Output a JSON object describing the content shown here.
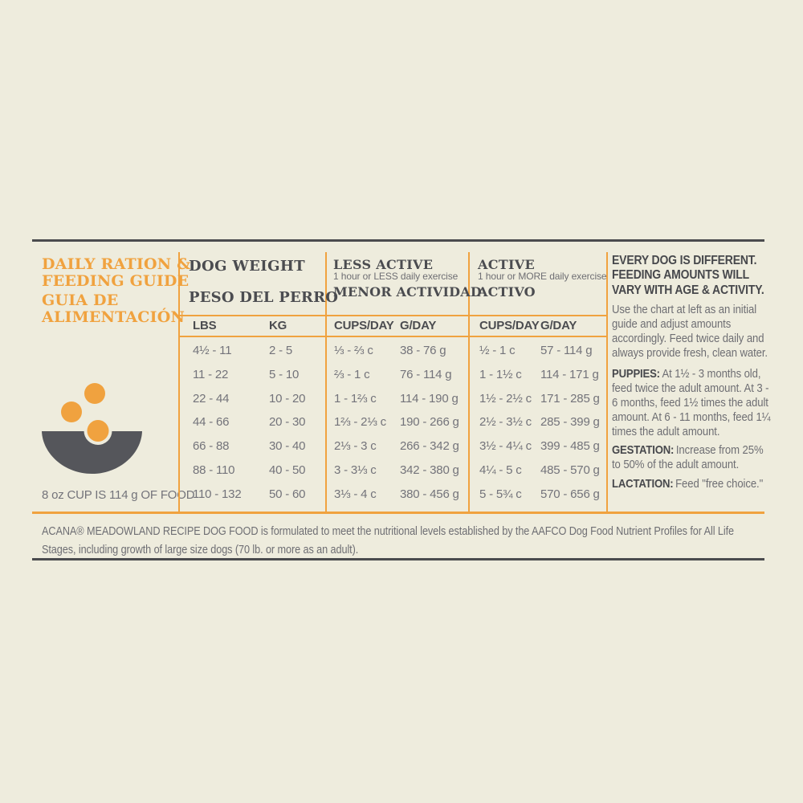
{
  "colors": {
    "background": "#EEECDD",
    "accent_orange": "#F0A23F",
    "dark_text": "#4B4C50",
    "body_gray": "#6E6E73",
    "bowl_gray": "#55565B"
  },
  "left_panel": {
    "title_line1": "DAILY RATION &",
    "title_line2": "FEEDING GUIDE",
    "subtitle_line1": "GUIA DE",
    "subtitle_line2": "ALIMENTACIÓN",
    "bowl_icon": "dog-food-bowl-with-kibble",
    "cup_note": "8 oz CUP IS 114 g OF FOOD"
  },
  "table": {
    "weight_header_en": "DOG WEIGHT",
    "weight_header_es": "PESO DEL PERRO",
    "less_active_en": "LESS ACTIVE",
    "less_active_note": "1 hour or LESS daily exercise",
    "less_active_es": "MENOR ACTIVIDAD",
    "active_en": "ACTIVE",
    "active_note": "1 hour or MORE daily exercise",
    "active_es": "ACTIVO",
    "columns": [
      "LBS",
      "KG",
      "CUPS/DAY",
      "G/DAY",
      "CUPS/DAY",
      "G/DAY"
    ],
    "rows": [
      [
        "4½ - 11",
        "2 - 5",
        "⅓ - ⅔ c",
        "38 - 76 g",
        "½ - 1 c",
        "57 - 114 g"
      ],
      [
        "11 - 22",
        "5 - 10",
        "⅔ - 1 c",
        "76 - 114 g",
        "1 - 1½ c",
        "114 - 171 g"
      ],
      [
        "22 - 44",
        "10 - 20",
        "1 - 1⅔ c",
        "114 - 190 g",
        "1½ - 2½ c",
        "171 - 285 g"
      ],
      [
        "44 - 66",
        "20 - 30",
        "1⅔ - 2⅓ c",
        "190 - 266 g",
        "2½ - 3½ c",
        "285 - 399 g"
      ],
      [
        "66 - 88",
        "30 - 40",
        "2⅓ - 3 c",
        "266 - 342 g",
        "3½ - 4¼ c",
        "399 - 485 g"
      ],
      [
        "88 - 110",
        "40 - 50",
        "3 - 3⅓ c",
        "342 - 380 g",
        "4¼ - 5 c",
        "485 - 570 g"
      ],
      [
        "110 - 132",
        "50 - 60",
        "3⅓ - 4 c",
        "380 - 456 g",
        "5 - 5¾ c",
        "570 - 656 g"
      ]
    ]
  },
  "advice_panel": {
    "heading_lines": [
      "EVERY DOG IS DIFFERENT.",
      "FEEDING AMOUNTS WILL",
      "VARY WITH AGE & ACTIVITY."
    ],
    "intro": "Use the chart at left as an initial guide and adjust amounts accordingly. Feed twice daily and always provide fresh, clean water.",
    "puppies_label": "PUPPIES:",
    "puppies_text": "At 1½ - 3 months old, feed twice the adult amount. At 3 - 6 months, feed 1½ times the adult amount. At 6 - 11 months, feed 1¼ times the adult amount.",
    "gestation_label": "GESTATION:",
    "gestation_text": "Increase from 25% to 50% of the adult amount.",
    "lactation_label": "LACTATION:",
    "lactation_text": "Feed \"free choice.\""
  },
  "footer": {
    "aafco_statement": "ACANA® MEADOWLAND RECIPE DOG FOOD is formulated to meet the nutritional levels established by the AAFCO Dog Food Nutrient Profiles for All Life Stages, including growth of large size dogs (70 lb. or more as an adult)."
  }
}
